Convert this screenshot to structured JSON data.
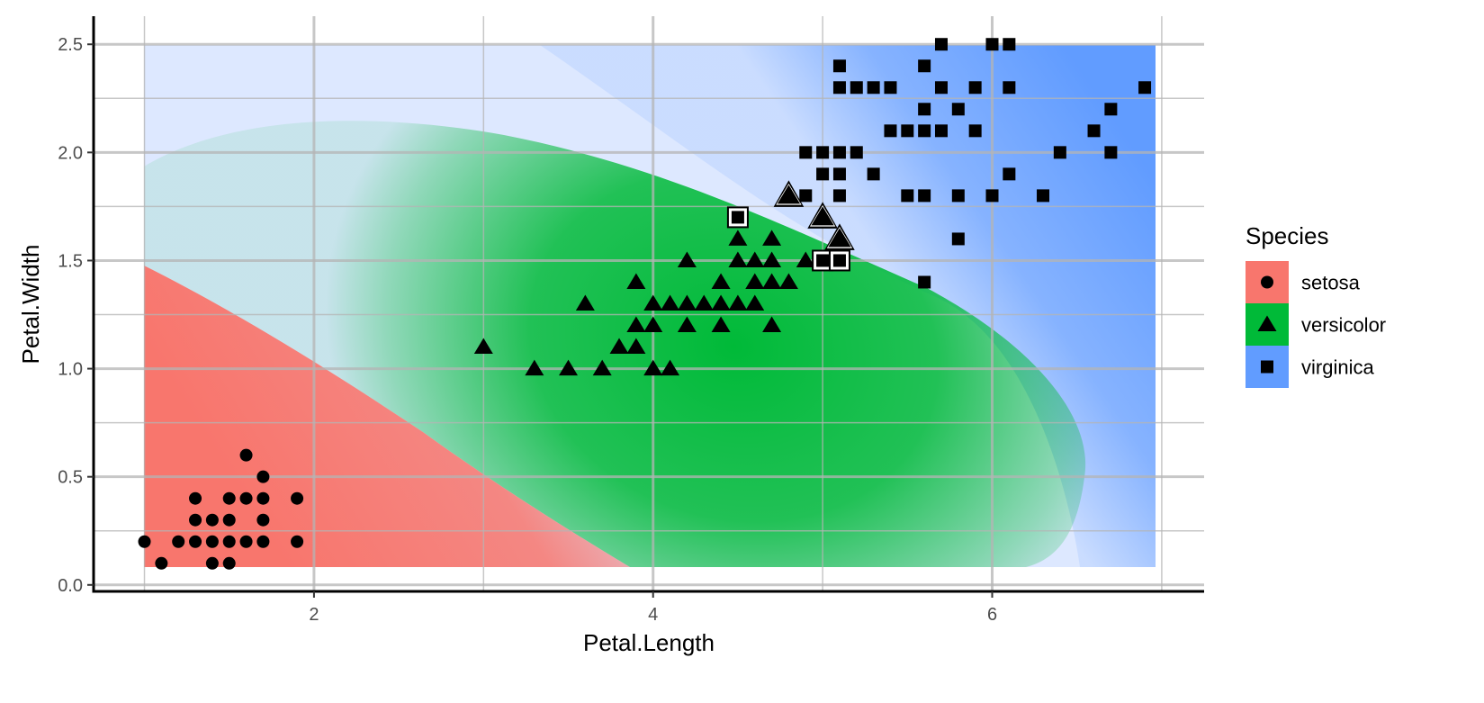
{
  "chart_data": {
    "type": "scatter",
    "xlabel": "Petal.Length",
    "ylabel": "Petal.Width",
    "xlim": [
      0.7,
      7.25
    ],
    "ylim": [
      -0.03,
      2.63
    ],
    "x_ticks": [
      2,
      4,
      6
    ],
    "y_ticks": [
      0.0,
      0.5,
      1.0,
      1.5,
      2.0,
      2.5
    ],
    "x_tick_labels": [
      "2",
      "4",
      "6"
    ],
    "y_tick_labels": [
      "0.0",
      "0.5",
      "1.0",
      "1.5",
      "2.0",
      "2.5"
    ],
    "grid": true,
    "background": "decision regions (red = setosa, green = versicolor, blue = virginica), pale where class probability is lower",
    "legend": {
      "title": "Species",
      "position": "right",
      "entries": [
        {
          "label": "setosa",
          "color": "#F8766D",
          "shape": "circle"
        },
        {
          "label": "versicolor",
          "color": "#00BA38",
          "shape": "triangle"
        },
        {
          "label": "virginica",
          "color": "#619CFF",
          "shape": "square"
        }
      ]
    },
    "series": [
      {
        "name": "setosa",
        "shape": "circle",
        "points": [
          [
            1.0,
            0.2
          ],
          [
            1.1,
            0.1
          ],
          [
            1.2,
            0.2
          ],
          [
            1.3,
            0.2
          ],
          [
            1.3,
            0.3
          ],
          [
            1.3,
            0.4
          ],
          [
            1.4,
            0.1
          ],
          [
            1.4,
            0.2
          ],
          [
            1.4,
            0.3
          ],
          [
            1.5,
            0.1
          ],
          [
            1.5,
            0.2
          ],
          [
            1.5,
            0.3
          ],
          [
            1.5,
            0.4
          ],
          [
            1.6,
            0.2
          ],
          [
            1.6,
            0.4
          ],
          [
            1.6,
            0.6
          ],
          [
            1.7,
            0.2
          ],
          [
            1.7,
            0.3
          ],
          [
            1.7,
            0.4
          ],
          [
            1.7,
            0.5
          ],
          [
            1.9,
            0.2
          ],
          [
            1.9,
            0.4
          ]
        ]
      },
      {
        "name": "versicolor",
        "shape": "triangle",
        "points": [
          [
            3.0,
            1.1
          ],
          [
            3.3,
            1.0
          ],
          [
            3.5,
            1.0
          ],
          [
            3.6,
            1.3
          ],
          [
            3.7,
            1.0
          ],
          [
            3.8,
            1.1
          ],
          [
            3.9,
            1.1
          ],
          [
            3.9,
            1.2
          ],
          [
            3.9,
            1.4
          ],
          [
            4.0,
            1.0
          ],
          [
            4.0,
            1.2
          ],
          [
            4.0,
            1.3
          ],
          [
            4.1,
            1.0
          ],
          [
            4.1,
            1.3
          ],
          [
            4.2,
            1.2
          ],
          [
            4.2,
            1.3
          ],
          [
            4.2,
            1.5
          ],
          [
            4.3,
            1.3
          ],
          [
            4.4,
            1.2
          ],
          [
            4.4,
            1.3
          ],
          [
            4.4,
            1.4
          ],
          [
            4.5,
            1.3
          ],
          [
            4.5,
            1.5
          ],
          [
            4.5,
            1.6
          ],
          [
            4.6,
            1.3
          ],
          [
            4.6,
            1.4
          ],
          [
            4.6,
            1.5
          ],
          [
            4.7,
            1.2
          ],
          [
            4.7,
            1.4
          ],
          [
            4.7,
            1.5
          ],
          [
            4.7,
            1.6
          ],
          [
            4.8,
            1.4
          ],
          [
            4.9,
            1.5
          ]
        ],
        "misclassified": [
          [
            4.8,
            1.8
          ],
          [
            5.0,
            1.7
          ],
          [
            5.1,
            1.6
          ]
        ]
      },
      {
        "name": "virginica",
        "shape": "square",
        "points": [
          [
            4.9,
            1.8
          ],
          [
            4.9,
            2.0
          ],
          [
            5.0,
            1.9
          ],
          [
            5.0,
            2.0
          ],
          [
            5.1,
            1.8
          ],
          [
            5.1,
            1.9
          ],
          [
            5.1,
            2.0
          ],
          [
            5.1,
            2.3
          ],
          [
            5.1,
            2.4
          ],
          [
            5.2,
            2.0
          ],
          [
            5.2,
            2.3
          ],
          [
            5.3,
            1.9
          ],
          [
            5.3,
            2.3
          ],
          [
            5.4,
            2.3
          ],
          [
            5.4,
            2.1
          ],
          [
            5.5,
            1.8
          ],
          [
            5.5,
            2.1
          ],
          [
            5.6,
            1.4
          ],
          [
            5.6,
            1.8
          ],
          [
            5.6,
            2.1
          ],
          [
            5.6,
            2.2
          ],
          [
            5.6,
            2.4
          ],
          [
            5.7,
            2.1
          ],
          [
            5.7,
            2.3
          ],
          [
            5.7,
            2.5
          ],
          [
            5.8,
            1.6
          ],
          [
            5.8,
            1.8
          ],
          [
            5.8,
            2.2
          ],
          [
            5.9,
            2.1
          ],
          [
            5.9,
            2.3
          ],
          [
            6.0,
            1.8
          ],
          [
            6.0,
            2.5
          ],
          [
            6.1,
            1.9
          ],
          [
            6.1,
            2.3
          ],
          [
            6.1,
            2.5
          ],
          [
            6.3,
            1.8
          ],
          [
            6.4,
            2.0
          ],
          [
            6.6,
            2.1
          ],
          [
            6.7,
            2.0
          ],
          [
            6.7,
            2.2
          ],
          [
            6.9,
            2.3
          ]
        ],
        "misclassified": [
          [
            4.5,
            1.7
          ],
          [
            5.0,
            1.5
          ],
          [
            5.1,
            1.5
          ]
        ]
      }
    ]
  }
}
